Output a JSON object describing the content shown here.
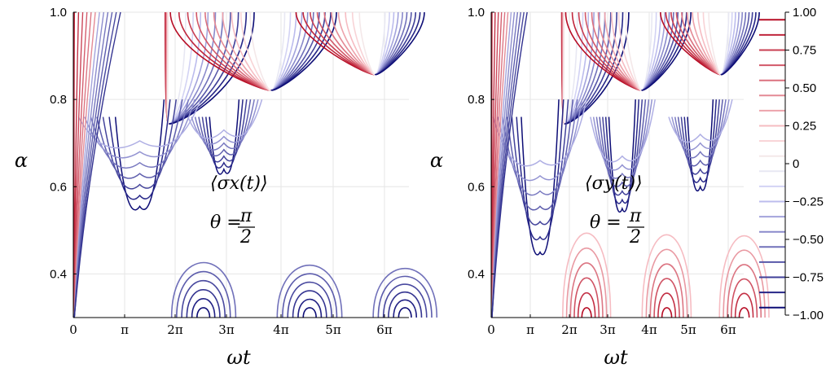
{
  "chart_data": [
    {
      "type": "contour",
      "panel": "left",
      "quantity": "⟨σx(t)⟩",
      "annotation_line1": "⟨σx(t)⟩",
      "annotation_theta": "θ =",
      "annotation_frac_num": "π",
      "annotation_frac_den": "2",
      "xlabel": "ωt",
      "ylabel": "α",
      "xlim": [
        0,
        6.4
      ],
      "ylim": [
        0.3,
        1.0
      ],
      "xticks": [
        0,
        1,
        2,
        3,
        4,
        5,
        6
      ],
      "xticklabels": [
        "0",
        "π",
        "2π",
        "3π",
        "4π",
        "5π",
        "6π"
      ],
      "yticks": [
        0.4,
        0.6,
        0.8,
        1.0
      ],
      "yticklabels": [
        "0.4",
        "0.6",
        "0.8",
        "1.0"
      ],
      "features": {
        "saddle_points": [
          [
            1.88,
            0.745
          ],
          [
            3.82,
            0.822
          ],
          [
            5.82,
            0.858
          ]
        ],
        "lower_lobe_peaks": [
          [
            2.55,
            0.458
          ],
          [
            4.55,
            0.45
          ],
          [
            6.4,
            0.44
          ]
        ]
      }
    },
    {
      "type": "contour",
      "panel": "right",
      "quantity": "⟨σy(t)⟩",
      "annotation_line1": "⟨σy(t)⟩",
      "annotation_theta": "θ =",
      "annotation_frac_num": "π",
      "annotation_frac_den": "2",
      "xlabel": "ωt",
      "ylabel": "α",
      "xlim": [
        0,
        6.4
      ],
      "ylim": [
        0.3,
        1.0
      ],
      "xticks": [
        0,
        1,
        2,
        3,
        4,
        5,
        6
      ],
      "xticklabels": [
        "0",
        "π",
        "2π",
        "3π",
        "4π",
        "5π",
        "6π"
      ],
      "yticks": [
        0.4,
        0.6,
        0.8,
        1.0
      ],
      "yticklabels": [
        "0.4",
        "0.6",
        "0.8",
        "1.0"
      ],
      "features": {
        "saddle_points": [
          [
            1.88,
            0.745
          ],
          [
            3.82,
            0.822
          ],
          [
            5.82,
            0.858
          ]
        ],
        "lower_lobe_peaks": [
          [
            2.45,
            0.548
          ],
          [
            4.45,
            0.543
          ],
          [
            6.4,
            0.54
          ]
        ]
      }
    }
  ],
  "colorbar": {
    "range": [
      -1.0,
      1.0
    ],
    "ticks": [
      1.0,
      0.75,
      0.5,
      0.25,
      0,
      -0.25,
      -0.5,
      -0.75,
      -1.0
    ],
    "ticklabels": [
      "1.00",
      "0.75",
      "0.50",
      "0.25",
      "0",
      "−0.25",
      "−0.50",
      "−0.75",
      "−1.00"
    ],
    "levels": [
      0.95,
      0.85,
      0.75,
      0.65,
      0.55,
      0.45,
      0.35,
      0.25,
      0.15,
      0.05,
      -0.05,
      -0.15,
      -0.25,
      -0.35,
      -0.45,
      -0.55,
      -0.65,
      -0.75,
      -0.85,
      -0.95
    ],
    "colormap_endpoints": {
      "positive": "#B2001A",
      "negative": "#00006E",
      "mid": "#F2F2F2"
    }
  }
}
